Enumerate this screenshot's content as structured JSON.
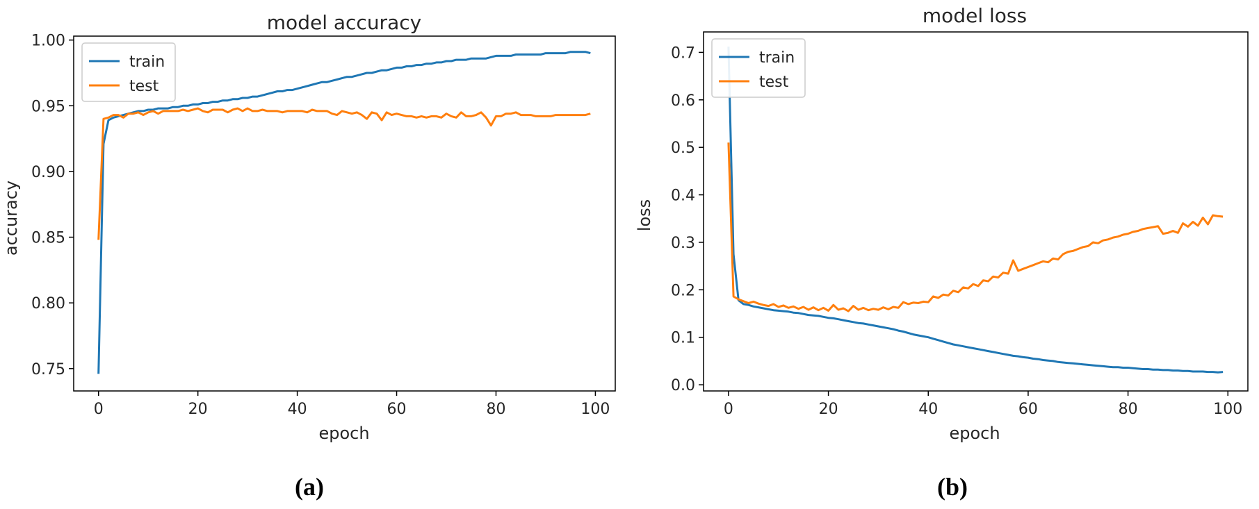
{
  "chart_data": [
    {
      "type": "line",
      "title": "model accuracy",
      "xlabel": "epoch",
      "ylabel": "accuracy",
      "xlim": [
        -5,
        104
      ],
      "ylim": [
        0.733,
        1.003
      ],
      "xticks": [
        0,
        20,
        40,
        60,
        80,
        100
      ],
      "yticks": [
        0.75,
        0.8,
        0.85,
        0.9,
        0.95,
        1.0
      ],
      "ytick_labels": [
        "0.75",
        "0.80",
        "0.85",
        "0.90",
        "0.95",
        "1.00"
      ],
      "legend": {
        "entries": [
          "train",
          "test"
        ],
        "position": "upper-left"
      },
      "grid": false,
      "caption": "(a)",
      "series": [
        {
          "name": "train",
          "color": "#1f77b4",
          "x": [
            0,
            1,
            2,
            3,
            4,
            5,
            6,
            7,
            8,
            9,
            10,
            11,
            12,
            13,
            14,
            15,
            16,
            17,
            18,
            19,
            20,
            21,
            22,
            23,
            24,
            25,
            26,
            27,
            28,
            29,
            30,
            31,
            32,
            33,
            34,
            35,
            36,
            37,
            38,
            39,
            40,
            41,
            42,
            43,
            44,
            45,
            46,
            47,
            48,
            49,
            50,
            51,
            52,
            53,
            54,
            55,
            56,
            57,
            58,
            59,
            60,
            61,
            62,
            63,
            64,
            65,
            66,
            67,
            68,
            69,
            70,
            71,
            72,
            73,
            74,
            75,
            76,
            77,
            78,
            79,
            80,
            81,
            82,
            83,
            84,
            85,
            86,
            87,
            88,
            89,
            90,
            91,
            92,
            93,
            94,
            95,
            96,
            97,
            98,
            99
          ],
          "values": [
            0.746,
            0.921,
            0.939,
            0.941,
            0.942,
            0.943,
            0.944,
            0.945,
            0.946,
            0.946,
            0.947,
            0.947,
            0.948,
            0.948,
            0.948,
            0.949,
            0.949,
            0.95,
            0.95,
            0.951,
            0.951,
            0.952,
            0.952,
            0.953,
            0.953,
            0.954,
            0.954,
            0.955,
            0.955,
            0.956,
            0.956,
            0.957,
            0.957,
            0.958,
            0.959,
            0.96,
            0.961,
            0.961,
            0.962,
            0.962,
            0.963,
            0.964,
            0.965,
            0.966,
            0.967,
            0.968,
            0.968,
            0.969,
            0.97,
            0.971,
            0.972,
            0.972,
            0.973,
            0.974,
            0.975,
            0.975,
            0.976,
            0.977,
            0.977,
            0.978,
            0.979,
            0.979,
            0.98,
            0.98,
            0.981,
            0.981,
            0.982,
            0.982,
            0.983,
            0.983,
            0.984,
            0.984,
            0.985,
            0.985,
            0.985,
            0.986,
            0.986,
            0.986,
            0.986,
            0.987,
            0.988,
            0.988,
            0.988,
            0.988,
            0.989,
            0.989,
            0.989,
            0.989,
            0.989,
            0.989,
            0.99,
            0.99,
            0.99,
            0.99,
            0.99,
            0.991,
            0.991,
            0.991,
            0.991,
            0.99
          ]
        },
        {
          "name": "test",
          "color": "#ff7f0e",
          "x": [
            0,
            1,
            2,
            3,
            4,
            5,
            6,
            7,
            8,
            9,
            10,
            11,
            12,
            13,
            14,
            15,
            16,
            17,
            18,
            19,
            20,
            21,
            22,
            23,
            24,
            25,
            26,
            27,
            28,
            29,
            30,
            31,
            32,
            33,
            34,
            35,
            36,
            37,
            38,
            39,
            40,
            41,
            42,
            43,
            44,
            45,
            46,
            47,
            48,
            49,
            50,
            51,
            52,
            53,
            54,
            55,
            56,
            57,
            58,
            59,
            60,
            61,
            62,
            63,
            64,
            65,
            66,
            67,
            68,
            69,
            70,
            71,
            72,
            73,
            74,
            75,
            76,
            77,
            78,
            79,
            80,
            81,
            82,
            83,
            84,
            85,
            86,
            87,
            88,
            89,
            90,
            91,
            92,
            93,
            94,
            95,
            96,
            97,
            98,
            99
          ],
          "values": [
            0.848,
            0.94,
            0.941,
            0.943,
            0.943,
            0.941,
            0.944,
            0.944,
            0.945,
            0.943,
            0.945,
            0.946,
            0.944,
            0.946,
            0.946,
            0.946,
            0.946,
            0.947,
            0.946,
            0.947,
            0.948,
            0.946,
            0.945,
            0.947,
            0.947,
            0.947,
            0.945,
            0.947,
            0.948,
            0.946,
            0.948,
            0.946,
            0.946,
            0.947,
            0.946,
            0.946,
            0.946,
            0.945,
            0.946,
            0.946,
            0.946,
            0.946,
            0.945,
            0.947,
            0.946,
            0.946,
            0.946,
            0.944,
            0.943,
            0.946,
            0.945,
            0.944,
            0.945,
            0.943,
            0.94,
            0.945,
            0.944,
            0.939,
            0.945,
            0.943,
            0.944,
            0.943,
            0.942,
            0.942,
            0.941,
            0.942,
            0.941,
            0.942,
            0.942,
            0.941,
            0.944,
            0.942,
            0.941,
            0.945,
            0.942,
            0.942,
            0.943,
            0.945,
            0.941,
            0.935,
            0.942,
            0.942,
            0.944,
            0.944,
            0.945,
            0.943,
            0.943,
            0.943,
            0.942,
            0.942,
            0.942,
            0.942,
            0.943,
            0.943,
            0.943,
            0.943,
            0.943,
            0.943,
            0.943,
            0.944
          ]
        }
      ]
    },
    {
      "type": "line",
      "title": "model loss",
      "xlabel": "epoch",
      "ylabel": "loss",
      "xlim": [
        -5,
        104
      ],
      "ylim": [
        -0.013,
        0.743
      ],
      "xticks": [
        0,
        20,
        40,
        60,
        80,
        100
      ],
      "yticks": [
        0.0,
        0.1,
        0.2,
        0.3,
        0.4,
        0.5,
        0.6,
        0.7
      ],
      "ytick_labels": [
        "0.0",
        "0.1",
        "0.2",
        "0.3",
        "0.4",
        "0.5",
        "0.6",
        "0.7"
      ],
      "legend": {
        "entries": [
          "train",
          "test"
        ],
        "position": "upper-left"
      },
      "grid": false,
      "caption": "(b)",
      "series": [
        {
          "name": "train",
          "color": "#1f77b4",
          "x": [
            0,
            1,
            2,
            3,
            4,
            5,
            6,
            7,
            8,
            9,
            10,
            11,
            12,
            13,
            14,
            15,
            16,
            17,
            18,
            19,
            20,
            21,
            22,
            23,
            24,
            25,
            26,
            27,
            28,
            29,
            30,
            31,
            32,
            33,
            34,
            35,
            36,
            37,
            38,
            39,
            40,
            41,
            42,
            43,
            44,
            45,
            46,
            47,
            48,
            49,
            50,
            51,
            52,
            53,
            54,
            55,
            56,
            57,
            58,
            59,
            60,
            61,
            62,
            63,
            64,
            65,
            66,
            67,
            68,
            69,
            70,
            71,
            72,
            73,
            74,
            75,
            76,
            77,
            78,
            79,
            80,
            81,
            82,
            83,
            84,
            85,
            86,
            87,
            88,
            89,
            90,
            91,
            92,
            93,
            94,
            95,
            96,
            97,
            98,
            99
          ],
          "values": [
            0.712,
            0.275,
            0.178,
            0.17,
            0.168,
            0.165,
            0.163,
            0.161,
            0.159,
            0.157,
            0.156,
            0.155,
            0.154,
            0.152,
            0.151,
            0.149,
            0.147,
            0.146,
            0.145,
            0.143,
            0.141,
            0.14,
            0.138,
            0.136,
            0.134,
            0.132,
            0.13,
            0.129,
            0.127,
            0.125,
            0.123,
            0.121,
            0.119,
            0.117,
            0.114,
            0.112,
            0.109,
            0.106,
            0.104,
            0.102,
            0.1,
            0.097,
            0.094,
            0.091,
            0.088,
            0.085,
            0.083,
            0.081,
            0.079,
            0.077,
            0.075,
            0.073,
            0.071,
            0.069,
            0.067,
            0.065,
            0.063,
            0.061,
            0.06,
            0.058,
            0.057,
            0.055,
            0.054,
            0.052,
            0.051,
            0.05,
            0.048,
            0.047,
            0.046,
            0.045,
            0.044,
            0.043,
            0.042,
            0.041,
            0.04,
            0.039,
            0.038,
            0.037,
            0.037,
            0.036,
            0.036,
            0.035,
            0.034,
            0.033,
            0.033,
            0.032,
            0.032,
            0.031,
            0.031,
            0.03,
            0.03,
            0.029,
            0.029,
            0.028,
            0.028,
            0.028,
            0.027,
            0.027,
            0.026,
            0.027
          ]
        },
        {
          "name": "test",
          "color": "#ff7f0e",
          "x": [
            0,
            1,
            2,
            3,
            4,
            5,
            6,
            7,
            8,
            9,
            10,
            11,
            12,
            13,
            14,
            15,
            16,
            17,
            18,
            19,
            20,
            21,
            22,
            23,
            24,
            25,
            26,
            27,
            28,
            29,
            30,
            31,
            32,
            33,
            34,
            35,
            36,
            37,
            38,
            39,
            40,
            41,
            42,
            43,
            44,
            45,
            46,
            47,
            48,
            49,
            50,
            51,
            52,
            53,
            54,
            55,
            56,
            57,
            58,
            59,
            60,
            61,
            62,
            63,
            64,
            65,
            66,
            67,
            68,
            69,
            70,
            71,
            72,
            73,
            74,
            75,
            76,
            77,
            78,
            79,
            80,
            81,
            82,
            83,
            84,
            85,
            86,
            87,
            88,
            89,
            90,
            91,
            92,
            93,
            94,
            95,
            96,
            97,
            98,
            99
          ],
          "values": [
            0.51,
            0.186,
            0.18,
            0.176,
            0.172,
            0.175,
            0.171,
            0.168,
            0.166,
            0.17,
            0.164,
            0.167,
            0.162,
            0.165,
            0.16,
            0.164,
            0.158,
            0.163,
            0.157,
            0.162,
            0.156,
            0.168,
            0.158,
            0.161,
            0.155,
            0.166,
            0.158,
            0.162,
            0.157,
            0.16,
            0.158,
            0.163,
            0.159,
            0.164,
            0.162,
            0.174,
            0.17,
            0.173,
            0.172,
            0.175,
            0.174,
            0.186,
            0.183,
            0.19,
            0.188,
            0.198,
            0.195,
            0.205,
            0.203,
            0.212,
            0.208,
            0.22,
            0.218,
            0.228,
            0.226,
            0.236,
            0.234,
            0.262,
            0.24,
            0.244,
            0.248,
            0.252,
            0.256,
            0.26,
            0.258,
            0.266,
            0.264,
            0.275,
            0.28,
            0.282,
            0.286,
            0.29,
            0.292,
            0.3,
            0.298,
            0.304,
            0.306,
            0.31,
            0.312,
            0.316,
            0.318,
            0.322,
            0.324,
            0.328,
            0.33,
            0.332,
            0.334,
            0.318,
            0.32,
            0.324,
            0.32,
            0.34,
            0.333,
            0.343,
            0.335,
            0.352,
            0.338,
            0.357,
            0.355,
            0.354
          ]
        }
      ]
    }
  ]
}
